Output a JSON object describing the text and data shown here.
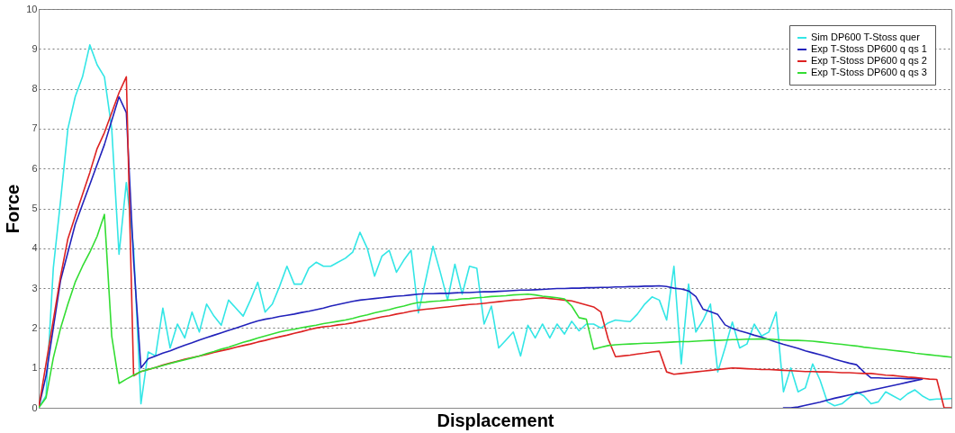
{
  "chart_data": {
    "type": "line",
    "xlabel": "Displacement",
    "ylabel": "Force",
    "categories": [
      null,
      null,
      null,
      null,
      null,
      null,
      null,
      null,
      null,
      null,
      null,
      null,
      null,
      null,
      null,
      null,
      null,
      null,
      null,
      null,
      null,
      null,
      null,
      null,
      null,
      null,
      null,
      null,
      null,
      null,
      null,
      null,
      null,
      null,
      null,
      null,
      null,
      null,
      null,
      null,
      null,
      null,
      null,
      null,
      null,
      null,
      null,
      null,
      null,
      null,
      null,
      null,
      null,
      null,
      null,
      null,
      null,
      null,
      null,
      null,
      null,
      null,
      null,
      null,
      null,
      null,
      null,
      null,
      null,
      null,
      null,
      null,
      null,
      null,
      null,
      null,
      null,
      null,
      null,
      null,
      null,
      null,
      null,
      null,
      null,
      null,
      null,
      null,
      null,
      null,
      null,
      null,
      null,
      null,
      null,
      null,
      null,
      null,
      null,
      null,
      null,
      null,
      null,
      null,
      null,
      null,
      null,
      null,
      null,
      null,
      null,
      null,
      null,
      null,
      null,
      null,
      null,
      null,
      null,
      null,
      null,
      null,
      null,
      null,
      null,
      null
    ],
    "ylim": [
      0,
      10
    ],
    "yticks": [
      0,
      1,
      2,
      3,
      4,
      5,
      6,
      7,
      8,
      9,
      10
    ],
    "tick_labels": "y",
    "grid": "y",
    "legend": "top right",
    "marker": "none",
    "line_style": "solid",
    "series": [
      {
        "name": "Sim DP600 T-Stoss quer",
        "color": "#33e6e6",
        "values": [
          0,
          0.3,
          3.5,
          5.2,
          7.0,
          7.8,
          8.3,
          9.1,
          8.6,
          8.3,
          7.0,
          3.85,
          5.65,
          4.0,
          0.1,
          1.4,
          1.3,
          2.5,
          1.5,
          2.1,
          1.75,
          2.4,
          1.9,
          2.6,
          2.3,
          2.07,
          2.7,
          2.5,
          2.3,
          2.7,
          3.15,
          2.4,
          2.6,
          3.05,
          3.55,
          3.1,
          3.1,
          3.5,
          3.65,
          3.55,
          3.55,
          3.65,
          3.75,
          3.9,
          4.4,
          4.0,
          3.3,
          3.8,
          3.95,
          3.4,
          3.7,
          3.95,
          2.38,
          3.2,
          4.05,
          3.4,
          2.7,
          3.6,
          2.85,
          3.55,
          3.5,
          2.1,
          2.55,
          1.5,
          1.7,
          1.9,
          1.3,
          2.07,
          1.75,
          2.1,
          1.75,
          2.1,
          1.85,
          2.17,
          1.93,
          2.1,
          2.1,
          2.0,
          2.13,
          2.2,
          2.18,
          2.16,
          2.35,
          2.6,
          2.78,
          2.7,
          2.2,
          3.55,
          1.1,
          3.1,
          1.9,
          2.2,
          2.6,
          0.9,
          1.5,
          2.15,
          1.5,
          1.6,
          2.1,
          1.8,
          1.9,
          2.4,
          0.4,
          1.0,
          0.4,
          0.5,
          1.1,
          0.7,
          0.15,
          0.05,
          0.1,
          0.25,
          0.4,
          0.3,
          0.1,
          0.15,
          0.4,
          0.3,
          0.2,
          0.35,
          0.45,
          0.3,
          0.2,
          0.22,
          0.22,
          0.23
        ]
      },
      {
        "name": "Exp T-Stoss DP600 q qs 1",
        "color": "#2222bb",
        "values": [
          0,
          0.8,
          2.0,
          3.2,
          3.9,
          4.6,
          5.1,
          5.6,
          6.1,
          6.6,
          7.2,
          7.8,
          7.4,
          3.7,
          1.0,
          1.23,
          1.3,
          1.37,
          1.43,
          1.5,
          1.57,
          1.63,
          1.7,
          1.76,
          1.82,
          1.88,
          1.94,
          2.0,
          2.06,
          2.12,
          2.18,
          2.22,
          2.25,
          2.29,
          2.32,
          2.35,
          2.39,
          2.42,
          2.46,
          2.5,
          2.55,
          2.59,
          2.63,
          2.67,
          2.7,
          2.72,
          2.74,
          2.76,
          2.78,
          2.8,
          2.81,
          2.83,
          2.85,
          2.86,
          2.86,
          2.87,
          2.87,
          2.88,
          2.89,
          2.89,
          2.9,
          2.91,
          2.91,
          2.92,
          2.93,
          2.94,
          2.95,
          2.95,
          2.96,
          2.97,
          2.98,
          2.99,
          2.99,
          3.0,
          3.0,
          3.01,
          3.01,
          3.02,
          3.02,
          3.03,
          3.03,
          3.04,
          3.04,
          3.05,
          3.05,
          3.06,
          3.04,
          3.0,
          2.98,
          2.93,
          2.79,
          2.47,
          2.41,
          2.34,
          2.08,
          1.99,
          1.93,
          1.88,
          1.82,
          1.77,
          1.71,
          1.65,
          1.59,
          1.54,
          1.49,
          1.43,
          1.38,
          1.33,
          1.28,
          1.22,
          1.17,
          1.12,
          1.08,
          0.9,
          0.75,
          0.75,
          0.74,
          0.74,
          0.74,
          0.73,
          0.73,
          0.73,
          null,
          null,
          null,
          null
        ]
      },
      {
        "color": "#2222bb",
        "values": [
          null,
          null,
          null,
          null,
          null,
          null,
          null,
          null,
          null,
          null,
          null,
          null,
          null,
          null,
          null,
          null,
          null,
          null,
          null,
          null,
          null,
          null,
          null,
          null,
          null,
          null,
          null,
          null,
          null,
          null,
          null,
          null,
          null,
          null,
          null,
          null,
          null,
          null,
          null,
          null,
          null,
          null,
          null,
          null,
          null,
          null,
          null,
          null,
          null,
          null,
          null,
          null,
          null,
          null,
          null,
          null,
          null,
          null,
          null,
          null,
          null,
          null,
          null,
          null,
          null,
          null,
          null,
          null,
          null,
          null,
          null,
          null,
          null,
          null,
          null,
          null,
          null,
          null,
          null,
          null,
          null,
          null,
          null,
          null,
          null,
          null,
          null,
          null,
          null,
          null,
          null,
          null,
          null,
          null,
          null,
          null,
          null,
          null,
          null,
          null,
          null,
          null,
          0,
          0,
          0.02,
          0.06,
          0.1,
          0.14,
          0.19,
          0.24,
          0.28,
          0.32,
          0.36,
          0.4,
          0.44,
          0.48,
          0.52,
          0.56,
          0.6,
          0.64,
          0.68,
          0.72,
          null,
          null,
          null,
          null
        ]
      },
      {
        "name": "Exp T-Stoss DP600 q qs 2",
        "color": "#dd2222",
        "values": [
          0,
          1.1,
          2.2,
          3.3,
          4.24,
          4.8,
          5.35,
          5.9,
          6.5,
          6.9,
          7.4,
          7.9,
          8.3,
          0.8,
          0.91,
          0.96,
          1.01,
          1.07,
          1.12,
          1.17,
          1.22,
          1.26,
          1.3,
          1.34,
          1.39,
          1.43,
          1.47,
          1.52,
          1.56,
          1.6,
          1.65,
          1.69,
          1.74,
          1.78,
          1.82,
          1.87,
          1.91,
          1.96,
          2.0,
          2.03,
          2.05,
          2.08,
          2.1,
          2.13,
          2.17,
          2.2,
          2.24,
          2.28,
          2.31,
          2.35,
          2.38,
          2.42,
          2.45,
          2.47,
          2.49,
          2.51,
          2.53,
          2.55,
          2.57,
          2.59,
          2.6,
          2.62,
          2.64,
          2.66,
          2.68,
          2.7,
          2.71,
          2.73,
          2.75,
          2.76,
          2.74,
          2.72,
          2.7,
          2.68,
          2.63,
          2.58,
          2.53,
          2.4,
          1.72,
          1.28,
          1.3,
          1.32,
          1.35,
          1.37,
          1.4,
          1.42,
          0.9,
          0.84,
          0.86,
          0.88,
          0.9,
          0.92,
          0.94,
          0.96,
          0.98,
          1.0,
          0.99,
          0.98,
          0.97,
          0.96,
          0.96,
          0.95,
          0.94,
          0.93,
          0.92,
          0.91,
          0.91,
          0.9,
          0.9,
          0.89,
          0.88,
          0.88,
          0.87,
          0.86,
          0.86,
          0.84,
          0.82,
          0.81,
          0.79,
          0.77,
          0.76,
          0.74,
          0.72,
          0.71,
          0,
          0
        ]
      },
      {
        "name": "Exp T-Stoss DP600 q qs 3",
        "color": "#33dd33",
        "values": [
          0,
          0.25,
          1.25,
          2.0,
          2.6,
          3.15,
          3.55,
          3.9,
          4.3,
          4.85,
          1.8,
          0.61,
          0.72,
          0.82,
          0.91,
          0.96,
          1.01,
          1.06,
          1.11,
          1.16,
          1.2,
          1.25,
          1.3,
          1.36,
          1.41,
          1.47,
          1.52,
          1.58,
          1.64,
          1.69,
          1.75,
          1.8,
          1.85,
          1.9,
          1.94,
          1.97,
          2.01,
          2.04,
          2.07,
          2.11,
          2.14,
          2.17,
          2.2,
          2.24,
          2.29,
          2.33,
          2.38,
          2.42,
          2.46,
          2.51,
          2.55,
          2.6,
          2.64,
          2.65,
          2.67,
          2.68,
          2.7,
          2.71,
          2.73,
          2.74,
          2.76,
          2.77,
          2.79,
          2.8,
          2.81,
          2.83,
          2.84,
          2.85,
          2.83,
          2.8,
          2.78,
          2.76,
          2.73,
          2.55,
          2.26,
          2.22,
          1.47,
          1.52,
          1.56,
          1.58,
          1.59,
          1.6,
          1.61,
          1.62,
          1.62,
          1.63,
          1.64,
          1.65,
          1.66,
          1.66,
          1.67,
          1.68,
          1.69,
          1.69,
          1.7,
          1.71,
          1.71,
          1.72,
          1.72,
          1.73,
          1.72,
          1.71,
          1.7,
          1.69,
          1.69,
          1.68,
          1.67,
          1.65,
          1.63,
          1.61,
          1.59,
          1.57,
          1.55,
          1.52,
          1.5,
          1.48,
          1.46,
          1.44,
          1.42,
          1.4,
          1.37,
          1.35,
          1.33,
          1.31,
          1.29,
          1.27
        ]
      }
    ]
  }
}
